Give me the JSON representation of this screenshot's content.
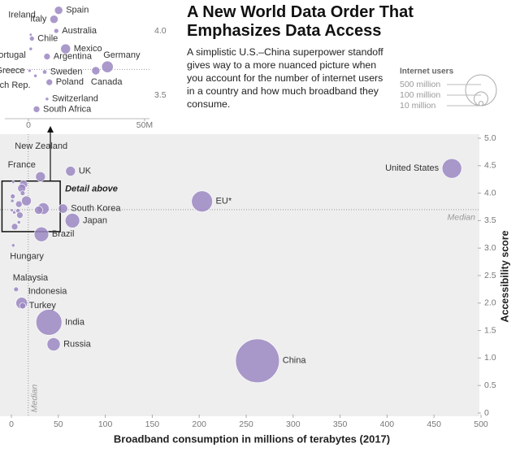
{
  "title": "A New World Data Order That Emphasizes Data Access",
  "subtitle": "A simplistic U.S.–China superpower standoff gives way to a more nuanced picture when you account for the number of internet users in a country and how much broadband they consume.",
  "size_legend": {
    "title": "Internet users",
    "items": [
      {
        "value": 500,
        "label": "500 million"
      },
      {
        "value": 100,
        "label": "100 million"
      },
      {
        "value": 10,
        "label": "10 million"
      }
    ]
  },
  "chart_data": [
    {
      "type": "scatter",
      "xlabel": "Broadband consumption in millions of terabytes (2017)",
      "ylabel": "Accessibility score",
      "xlim": [
        0,
        500
      ],
      "ylim": [
        0,
        5
      ],
      "xticks": [
        0,
        50,
        100,
        150,
        200,
        250,
        300,
        350,
        400,
        450,
        500
      ],
      "yticks": [
        0,
        0.5,
        {
          "value": 1,
          "label": "1.0"
        },
        1.5,
        {
          "value": 2,
          "label": "2.0"
        },
        2.5,
        {
          "value": 3,
          "label": "3.0"
        },
        3.5,
        {
          "value": 4,
          "label": "4.0"
        },
        4.5,
        {
          "value": 5,
          "label": "5.0"
        }
      ],
      "color": "#9b87c2",
      "median": {
        "label": "Median",
        "x": 18,
        "y": 3.7
      },
      "annotation": "Detail above",
      "points": {
        "labels": [
          "United States",
          "EU*",
          "China",
          "India",
          "Russia",
          "Japan",
          "Brazil",
          "UK",
          "France",
          "South Korea",
          "Hungary",
          "Malaysia",
          "Indonesia",
          "Turkey",
          "New Zealand"
        ],
        "x": [
          469,
          203,
          262,
          40,
          45,
          65,
          32,
          63,
          31,
          55,
          2,
          5,
          11,
          12,
          2
        ],
        "y": [
          4.45,
          3.85,
          0.95,
          1.65,
          1.25,
          3.5,
          3.25,
          4.4,
          4.3,
          3.72,
          3.05,
          2.25,
          2.0,
          1.95,
          4.2
        ],
        "sizes": [
          200,
          230,
          1000,
          350,
          90,
          110,
          110,
          50,
          50,
          45,
          6,
          12,
          70,
          20,
          4
        ]
      }
    },
    {
      "type": "scatter",
      "xlim": [
        -10,
        52
      ],
      "ylim": [
        3.3,
        4.22
      ],
      "xticks": [
        0,
        {
          "value": 50,
          "label": "50M"
        }
      ],
      "yticks": [
        3.5,
        {
          "value": 4,
          "label": "4.0"
        }
      ],
      "color": "#9b87c2",
      "points": {
        "labels": [
          "Spain",
          "Italy",
          "Australia",
          "Ireland",
          "Chile",
          "Portugal",
          "Mexico",
          "Argentina",
          "Germany",
          "Canada",
          "Greece",
          "Sweden",
          "Czech Rep.",
          "Poland",
          "Switzerland",
          "South Africa"
        ],
        "x": [
          13,
          11,
          12,
          1,
          1.5,
          1,
          16,
          8,
          34,
          29,
          0.5,
          7,
          3,
          9,
          8,
          3.5
        ],
        "y": [
          4.16,
          4.09,
          4.0,
          3.97,
          3.94,
          3.86,
          3.86,
          3.8,
          3.72,
          3.69,
          3.69,
          3.68,
          3.65,
          3.6,
          3.47,
          3.39
        ],
        "sizes": [
          35,
          35,
          12,
          4,
          12,
          6,
          50,
          22,
          70,
          35,
          5,
          10,
          6,
          22,
          6,
          22
        ]
      }
    }
  ]
}
